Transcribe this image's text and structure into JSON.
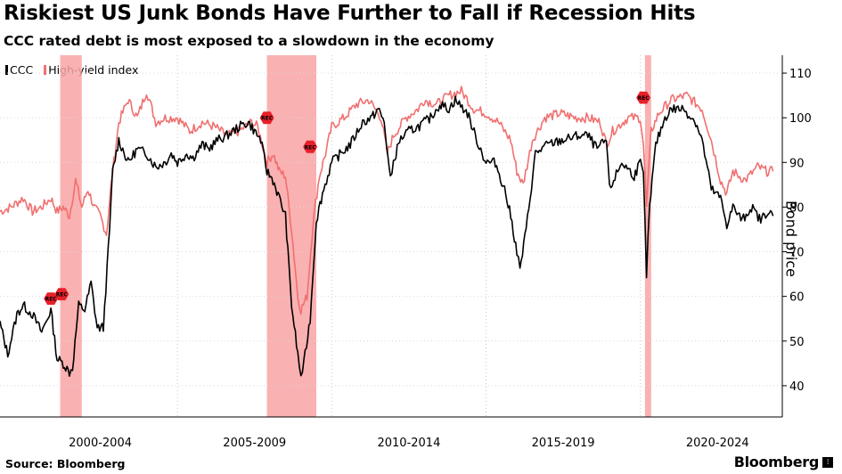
{
  "header": {
    "title": "Riskiest US Junk Bonds Have Further to Fall if Recession Hits",
    "subtitle": "CCC rated debt is most exposed to a slowdown in the economy"
  },
  "footer": {
    "source": "Source: Bloomberg",
    "brand": "Bloomberg"
  },
  "colors": {
    "ccc": "#000000",
    "high_yield": "#f07070",
    "recession_band": "#f9a3a3",
    "rec_marker": "#e8202a"
  },
  "chart_data": {
    "type": "line",
    "title": "Riskiest US Junk Bonds Have Further to Fall if Recession Hits",
    "subtitle": "CCC rated debt is most exposed to a slowdown in the economy",
    "xlabel": "",
    "ylabel": "Bond price",
    "xlim": [
      1999.25,
      2024.6
    ],
    "ylim": [
      33,
      114
    ],
    "y_ticks": [
      40,
      50,
      60,
      70,
      80,
      90,
      100,
      110
    ],
    "x_ticks": [
      {
        "label": "2000-2004",
        "center": 2002.5
      },
      {
        "label": "2005-2009",
        "center": 2007.5
      },
      {
        "label": "2010-2014",
        "center": 2012.5
      },
      {
        "label": "2015-2019",
        "center": 2017.5
      },
      {
        "label": "2020-2024",
        "center": 2022.5
      }
    ],
    "x_gridlines": [
      2005,
      2010,
      2015,
      2020
    ],
    "legend": [
      "CCC",
      "High-yield index"
    ],
    "legend_position": "top-left",
    "recessions": [
      {
        "start": 2001.2,
        "end": 2001.9,
        "label": "REC"
      },
      {
        "start": 2007.9,
        "end": 2009.5,
        "label": "REC"
      },
      {
        "start": 2020.15,
        "end": 2020.35,
        "label": "REC"
      }
    ],
    "series": [
      {
        "name": "CCC",
        "x": [
          1999.25,
          1999.5,
          1999.8,
          2000.0,
          2000.3,
          2000.6,
          2000.9,
          2001.1,
          2001.3,
          2001.5,
          2001.6,
          2001.8,
          2002.0,
          2002.2,
          2002.4,
          2002.6,
          2002.8,
          2002.9,
          2003.1,
          2003.4,
          2003.7,
          2004.0,
          2004.3,
          2004.6,
          2004.8,
          2005.0,
          2005.3,
          2005.5,
          2005.8,
          2006.0,
          2006.3,
          2006.6,
          2007.0,
          2007.3,
          2007.5,
          2007.7,
          2007.9,
          2008.1,
          2008.3,
          2008.5,
          2008.7,
          2008.9,
          2009.0,
          2009.1,
          2009.3,
          2009.5,
          2009.7,
          2010.0,
          2010.3,
          2010.6,
          2011.0,
          2011.3,
          2011.5,
          2011.7,
          2011.9,
          2012.0,
          2012.2,
          2012.5,
          2012.8,
          2013.0,
          2013.2,
          2013.5,
          2013.8,
          2014.0,
          2014.4,
          2014.7,
          2015.0,
          2015.3,
          2015.6,
          2015.8,
          2016.0,
          2016.1,
          2016.3,
          2016.6,
          2017.0,
          2017.5,
          2018.0,
          2018.3,
          2018.6,
          2018.9,
          2019.0,
          2019.4,
          2019.8,
          2020.0,
          2020.1,
          2020.2,
          2020.3,
          2020.5,
          2020.8,
          2021.0,
          2021.4,
          2021.8,
          2022.0,
          2022.3,
          2022.6,
          2022.8,
          2023.0,
          2023.3,
          2023.6,
          2023.9,
          2024.1,
          2024.3
        ],
        "values": [
          54,
          47,
          56,
          58,
          56,
          52,
          57,
          46,
          45,
          43,
          44,
          58,
          57,
          63,
          53,
          53,
          75,
          88,
          95,
          90,
          93,
          92,
          89,
          90,
          92,
          90,
          92,
          91,
          94,
          93,
          95,
          96,
          98,
          99,
          97,
          95,
          88,
          86,
          82,
          78,
          58,
          47,
          42,
          45,
          55,
          77,
          83,
          90,
          92,
          94,
          99,
          100,
          102,
          99,
          86,
          90,
          95,
          97,
          98,
          99,
          100,
          103,
          102,
          104,
          101,
          95,
          90,
          90,
          84,
          78,
          70,
          66,
          75,
          92,
          94,
          95,
          96,
          96,
          93,
          95,
          84,
          90,
          87,
          90,
          87,
          65,
          80,
          94,
          100,
          102,
          102,
          99,
          95,
          84,
          82,
          76,
          80,
          77,
          80,
          77,
          79,
          78
        ]
      },
      {
        "name": "High-yield index",
        "x": [
          1999.25,
          1999.6,
          2000.0,
          2000.3,
          2000.6,
          2000.9,
          2001.1,
          2001.3,
          2001.5,
          2001.7,
          2001.9,
          2002.1,
          2002.3,
          2002.5,
          2002.7,
          2002.9,
          2003.1,
          2003.4,
          2003.7,
          2004.0,
          2004.3,
          2004.6,
          2005.0,
          2005.4,
          2005.8,
          2006.2,
          2006.6,
          2007.0,
          2007.4,
          2007.6,
          2007.9,
          2008.1,
          2008.3,
          2008.5,
          2008.7,
          2008.9,
          2009.0,
          2009.2,
          2009.4,
          2009.6,
          2009.8,
          2010.0,
          2010.4,
          2010.8,
          2011.2,
          2011.6,
          2011.8,
          2012.0,
          2012.4,
          2012.8,
          2013.0,
          2013.4,
          2013.8,
          2014.2,
          2014.6,
          2015.0,
          2015.4,
          2015.8,
          2016.0,
          2016.2,
          2016.5,
          2016.9,
          2017.4,
          2017.9,
          2018.3,
          2018.7,
          2018.9,
          2019.1,
          2019.6,
          2020.0,
          2020.1,
          2020.2,
          2020.35,
          2020.6,
          2021.0,
          2021.5,
          2022.0,
          2022.3,
          2022.6,
          2022.8,
          2023.0,
          2023.4,
          2023.8,
          2024.1,
          2024.3
        ],
        "values": [
          79,
          80,
          82,
          79,
          80,
          82,
          79,
          80,
          78,
          86,
          80,
          84,
          80,
          78,
          74,
          88,
          99,
          104,
          100,
          106,
          99,
          100,
          100,
          97,
          99,
          98,
          96,
          97,
          99,
          98,
          90,
          92,
          88,
          87,
          75,
          60,
          57,
          60,
          77,
          87,
          92,
          98,
          100,
          103,
          104,
          100,
          92,
          96,
          100,
          102,
          104,
          103,
          105,
          106,
          102,
          101,
          99,
          95,
          88,
          85,
          95,
          100,
          101,
          100,
          100,
          99,
          94,
          97,
          100,
          100,
          94,
          80,
          97,
          101,
          104,
          105,
          102,
          95,
          86,
          83,
          88,
          86,
          89,
          88,
          88
        ]
      }
    ]
  }
}
